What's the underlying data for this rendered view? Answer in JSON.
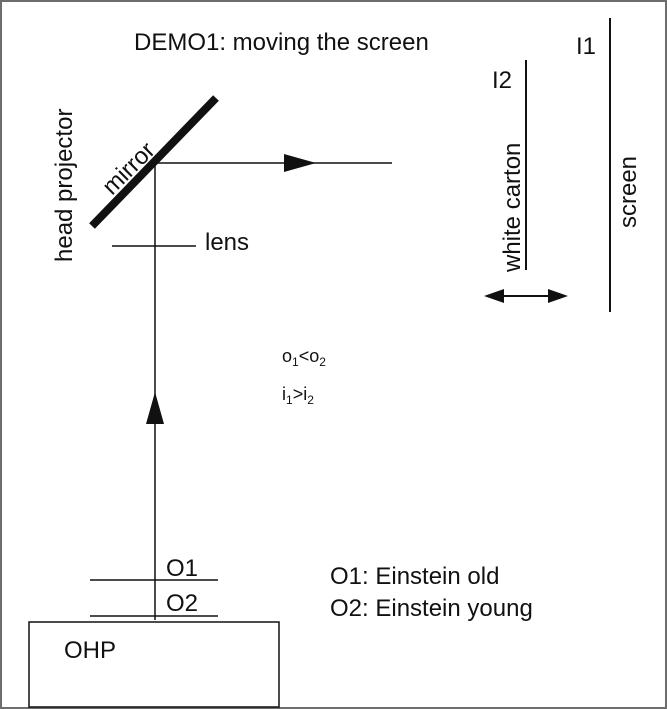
{
  "title": "DEMO1: moving the screen",
  "labels": {
    "i1": "I1",
    "i2": "I2",
    "screen": "screen",
    "white_carton": "white carton",
    "head_projector": "head projector",
    "mirror": "mirror",
    "lens": "lens",
    "o1": "O1",
    "o2": "O2",
    "ohp": "OHP"
  },
  "relations": {
    "object": {
      "a": "o",
      "a_sub": "1",
      "op": "<",
      "b": "o",
      "b_sub": "2"
    },
    "image": {
      "a": "i",
      "a_sub": "1",
      "op": ">",
      "b": "i",
      "b_sub": "2"
    }
  },
  "legend": {
    "o1": "O1: Einstein old",
    "o2": "O2: Einstein young"
  },
  "colors": {
    "stroke": "#111111",
    "frame": "#6d6d6d",
    "background": "#ffffff"
  }
}
